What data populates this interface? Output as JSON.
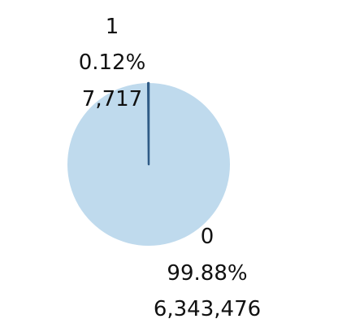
{
  "chart_data": {
    "type": "pie",
    "categories": [
      "0",
      "1"
    ],
    "values": [
      6343476,
      7717
    ],
    "percent_labels": [
      "99.88%",
      "0.12%"
    ],
    "count_labels": [
      "6,343,476",
      "7,717"
    ],
    "colors": [
      "#bfdaed",
      "#2f5b86"
    ],
    "legend": "none",
    "title": ""
  }
}
